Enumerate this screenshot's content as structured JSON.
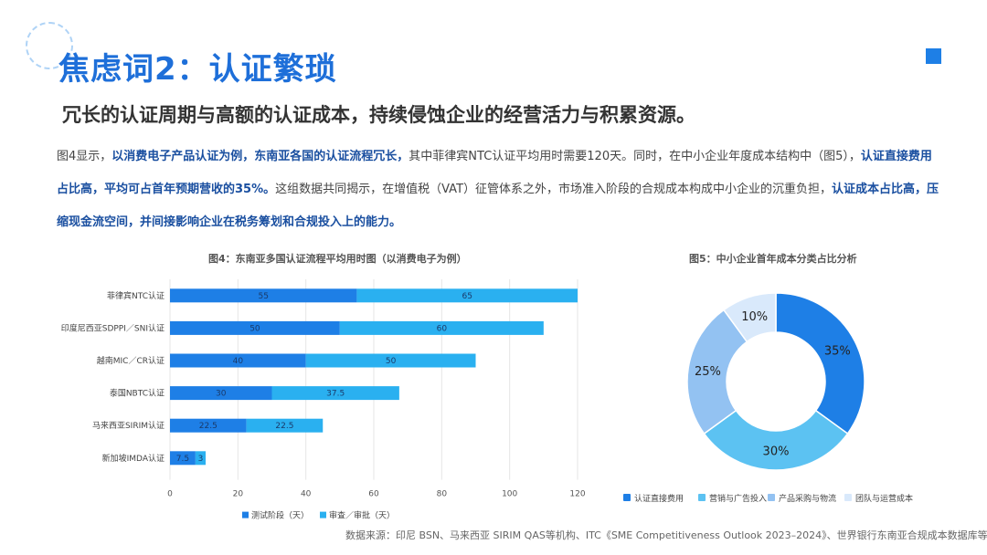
{
  "page": {
    "title": "焦虑词2：认证繁琐",
    "subtitle": "冗长的认证周期与高额的认证成本，持续侵蚀企业的经营活力与积累资源。",
    "paragraph": [
      {
        "text": "图4显示，",
        "bold": false
      },
      {
        "text": "以消费电子产品认证为例，东南亚各国的认证流程冗长，",
        "bold": true
      },
      {
        "text": "其中菲律宾NTC认证平均用时需要120天。同时，在中小企业年度成本结构中（图5），",
        "bold": false
      },
      {
        "text": "认证直接费用占比高，平均可占首年预期营收的35%。",
        "bold": true
      },
      {
        "text": "这组数据共同揭示，在增值税（VAT）征管体系之外，市场准入阶段的合规成本构成中小企业的沉重负担，",
        "bold": false
      },
      {
        "text": "认证成本占比高，压缩现金流空间，并间接影响企业在税务筹划和合规投入上的能力。",
        "bold": true
      }
    ],
    "source": "数据来源：印尼 BSN、马来西亚 SIRIM QAS等机构、ITC《SME Competitiveness Outlook 2023–2024》、世界银行东南亚合规成本数据库等"
  },
  "chart_data": [
    {
      "type": "bar",
      "orientation": "horizontal",
      "stacked": true,
      "title": "图4：东南亚多国认证流程平均用时图（以消费电子为例）",
      "categories": [
        "菲律宾NTC认证",
        "印度尼西亚SDPPI／SNI认证",
        "越南MIC／CR认证",
        "泰国NBTC认证",
        "马来西亚SIRIM认证",
        "新加坡IMDA认证"
      ],
      "series": [
        {
          "name": "测试阶段（天）",
          "values": [
            55,
            50,
            40,
            30,
            22.5,
            7.5
          ],
          "labels": [
            "55",
            "50",
            "40",
            "30",
            "22.5",
            "7.5"
          ],
          "color": "#1e7fe6"
        },
        {
          "name": "审查／审批（天）",
          "values": [
            65,
            60,
            50,
            37.5,
            22.5,
            3
          ],
          "labels": [
            "65",
            "60",
            "50",
            "37.5",
            "22.5",
            "3"
          ],
          "color": "#2ab0f0"
        }
      ],
      "xlim": [
        0,
        120
      ],
      "xticks": [
        0,
        20,
        40,
        60,
        80,
        100,
        120
      ],
      "grid": true,
      "legend": "bottom"
    },
    {
      "type": "pie",
      "donut": true,
      "title": "图5：中小企业首年成本分类占比分析",
      "labels": [
        "认证直接费用",
        "营销与广告投入",
        "产品采购与物流",
        "团队与运营成本"
      ],
      "values": [
        35,
        30,
        25,
        10
      ],
      "value_labels": [
        "35%",
        "30%",
        "25%",
        "10%"
      ],
      "colors": [
        "#1e7fe6",
        "#5cc2f2",
        "#93c2f2",
        "#d9e9fb"
      ],
      "legend": "bottom"
    }
  ]
}
